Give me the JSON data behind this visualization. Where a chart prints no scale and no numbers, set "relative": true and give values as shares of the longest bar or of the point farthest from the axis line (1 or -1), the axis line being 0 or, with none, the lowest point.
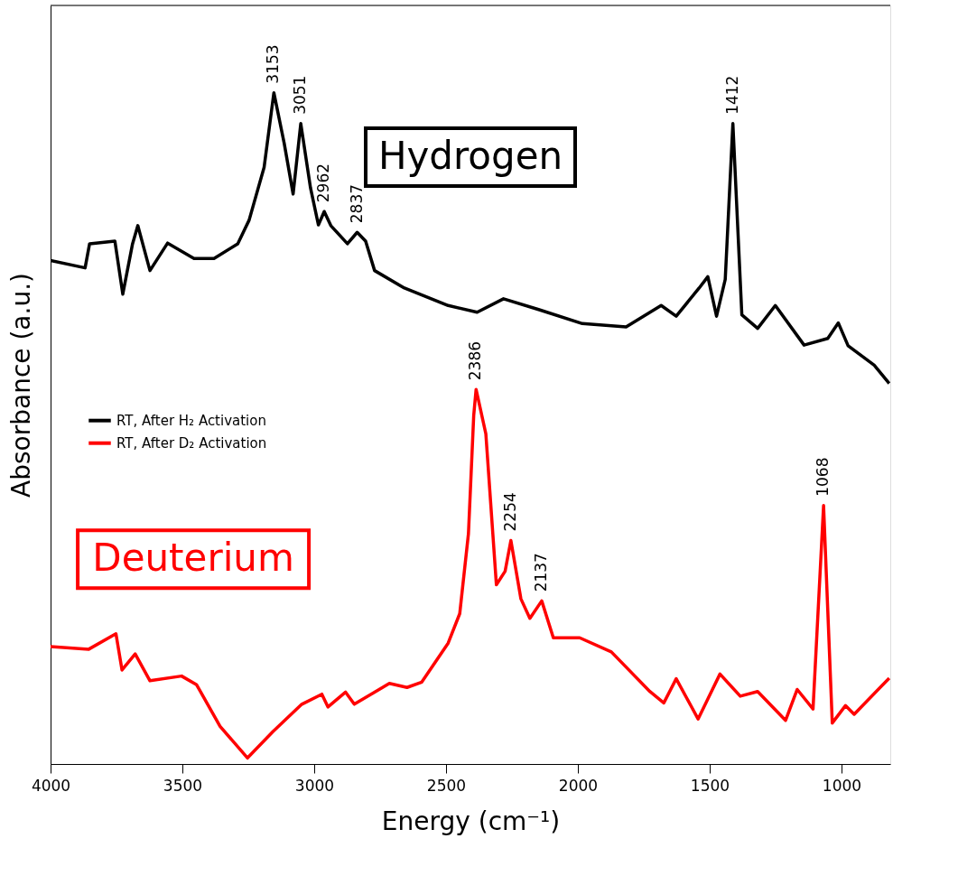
{
  "chart_data": {
    "type": "line",
    "relative": true,
    "xlabel": "Energy (cm⁻¹)",
    "ylabel": "Absorbance (a.u.)",
    "xlim": [
      4000,
      815
    ],
    "xticks": [
      4000,
      3500,
      3000,
      2500,
      2000,
      1500,
      1000
    ],
    "grid": false,
    "legend": "left",
    "marker": "none",
    "line_style": "solid",
    "series": [
      {
        "name": "RT, After H₂ Activation",
        "color": "#000000",
        "x": [
          4000,
          3869,
          3852,
          3756,
          3726,
          3689,
          3669,
          3623,
          3556,
          3456,
          3380,
          3290,
          3247,
          3190,
          3153,
          3114,
          3080,
          3051,
          3014,
          2984,
          2962,
          2937,
          2874,
          2837,
          2805,
          2771,
          2658,
          2492,
          2382,
          2282,
          2149,
          1983,
          1817,
          1684,
          1627,
          1540,
          1507,
          1474,
          1441,
          1412,
          1378,
          1318,
          1251,
          1142,
          1052,
          1012,
          975,
          876,
          819
        ],
        "values": [
          0.75,
          0.739,
          0.775,
          0.779,
          0.7,
          0.775,
          0.802,
          0.735,
          0.776,
          0.753,
          0.753,
          0.775,
          0.81,
          0.889,
          1.0,
          0.925,
          0.849,
          0.954,
          0.858,
          0.803,
          0.823,
          0.802,
          0.775,
          0.792,
          0.779,
          0.735,
          0.709,
          0.683,
          0.673,
          0.693,
          0.677,
          0.656,
          0.651,
          0.683,
          0.667,
          0.709,
          0.726,
          0.667,
          0.722,
          0.954,
          0.669,
          0.649,
          0.683,
          0.624,
          0.634,
          0.657,
          0.623,
          0.594,
          0.567
        ]
      },
      {
        "name": "RT, After D₂ Activation",
        "color": "#ff0000",
        "x": [
          4000,
          3855,
          3752,
          3729,
          3679,
          3623,
          3503,
          3446,
          3357,
          3253,
          3157,
          3047,
          2971,
          2948,
          2881,
          2848,
          2715,
          2648,
          2592,
          2492,
          2448,
          2415,
          2395,
          2386,
          2349,
          2309,
          2276,
          2254,
          2216,
          2182,
          2137,
          2093,
          1993,
          1873,
          1727,
          1674,
          1627,
          1544,
          1461,
          1384,
          1318,
          1212,
          1168,
          1108,
          1068,
          1035,
          985,
          952,
          819
        ],
        "values": [
          0.175,
          0.171,
          0.194,
          0.14,
          0.164,
          0.124,
          0.131,
          0.118,
          0.056,
          0.009,
          0.048,
          0.089,
          0.104,
          0.085,
          0.107,
          0.089,
          0.12,
          0.114,
          0.122,
          0.18,
          0.224,
          0.343,
          0.519,
          0.558,
          0.492,
          0.267,
          0.287,
          0.333,
          0.246,
          0.217,
          0.243,
          0.188,
          0.188,
          0.167,
          0.108,
          0.091,
          0.127,
          0.067,
          0.134,
          0.101,
          0.108,
          0.065,
          0.111,
          0.082,
          0.385,
          0.061,
          0.087,
          0.074,
          0.128
        ]
      }
    ],
    "annotations": [
      "Hydrogen",
      "Deuterium",
      {
        "text": "3153",
        "x": 3153,
        "y": 1.0
      },
      {
        "text": "3051",
        "x": 3051,
        "y": 0.954
      },
      {
        "text": "2962",
        "x": 2962,
        "y": 0.823
      },
      {
        "text": "2837",
        "x": 2837,
        "y": 0.792
      },
      {
        "text": "1412",
        "x": 1412,
        "y": 0.954
      },
      {
        "text": "2386",
        "x": 2386,
        "y": 0.558
      },
      {
        "text": "2254",
        "x": 2254,
        "y": 0.333
      },
      {
        "text": "2137",
        "x": 2137,
        "y": 0.243
      },
      {
        "text": "1068",
        "x": 1068,
        "y": 0.385
      }
    ]
  }
}
